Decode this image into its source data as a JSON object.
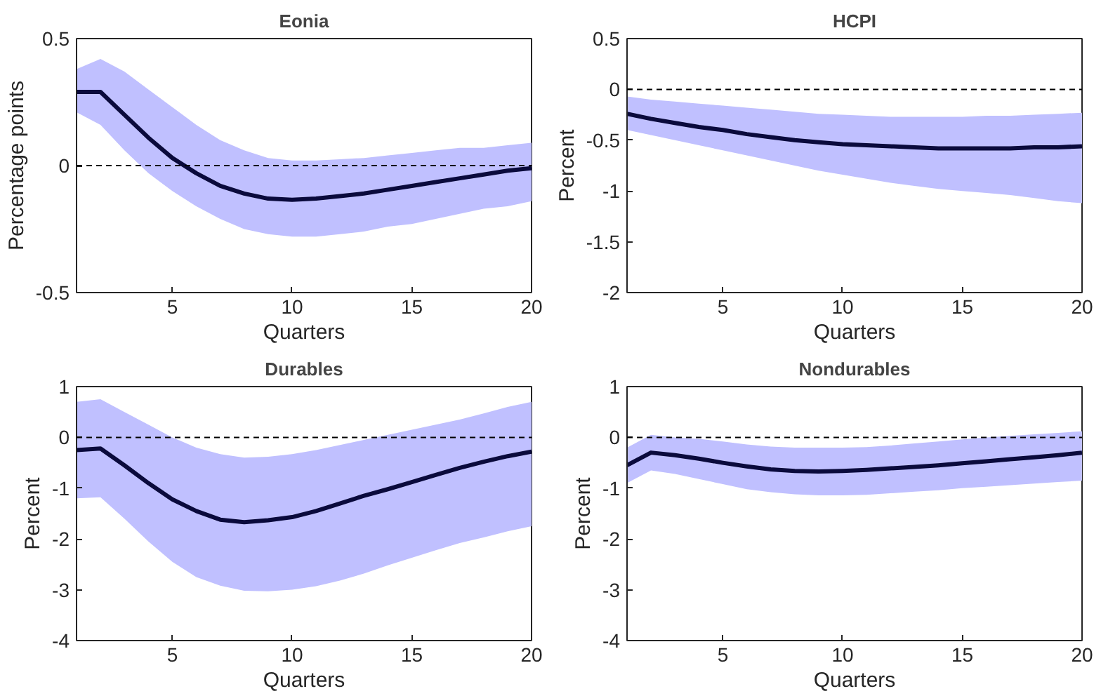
{
  "chart_data": [
    {
      "type": "line",
      "title": "Eonia",
      "xlabel": "Quarters",
      "ylabel": "Percentage points",
      "xlim": [
        1,
        20
      ],
      "xticks": [
        5,
        10,
        15,
        20
      ],
      "ylim": [
        -0.5,
        0.5
      ],
      "yticks": [
        -0.5,
        0,
        0.5
      ],
      "grid": false,
      "line_style": "solid",
      "ref_lines": [
        {
          "axis": "y",
          "value": 0,
          "color": "#000000",
          "line_style": "dashed"
        }
      ],
      "x": [
        1,
        2,
        3,
        4,
        5,
        6,
        7,
        8,
        9,
        10,
        11,
        12,
        13,
        14,
        15,
        16,
        17,
        18,
        19,
        20
      ],
      "series": [
        {
          "color": "#0a0a3c",
          "values": [
            0.29,
            0.29,
            0.2,
            0.11,
            0.03,
            -0.03,
            -0.08,
            -0.11,
            -0.13,
            -0.135,
            -0.13,
            -0.12,
            -0.11,
            -0.095,
            -0.08,
            -0.065,
            -0.05,
            -0.035,
            -0.02,
            -0.01
          ],
          "upper": [
            0.38,
            0.42,
            0.37,
            0.3,
            0.23,
            0.16,
            0.1,
            0.06,
            0.03,
            0.02,
            0.02,
            0.025,
            0.03,
            0.04,
            0.05,
            0.06,
            0.07,
            0.07,
            0.08,
            0.09
          ],
          "lower": [
            0.21,
            0.16,
            0.06,
            -0.03,
            -0.1,
            -0.16,
            -0.21,
            -0.25,
            -0.27,
            -0.28,
            -0.28,
            -0.27,
            -0.26,
            -0.24,
            -0.23,
            -0.21,
            -0.19,
            -0.17,
            -0.16,
            -0.14
          ]
        }
      ]
    },
    {
      "type": "line",
      "title": "HCPI",
      "xlabel": "Quarters",
      "ylabel": "Percent",
      "xlim": [
        1,
        20
      ],
      "xticks": [
        5,
        10,
        15,
        20
      ],
      "ylim": [
        -2,
        0.5
      ],
      "yticks": [
        -2,
        -1.5,
        -1,
        -0.5,
        0,
        0.5
      ],
      "grid": false,
      "line_style": "solid",
      "ref_lines": [
        {
          "axis": "y",
          "value": 0,
          "color": "#000000",
          "line_style": "dashed"
        }
      ],
      "x": [
        1,
        2,
        3,
        4,
        5,
        6,
        7,
        8,
        9,
        10,
        11,
        12,
        13,
        14,
        15,
        16,
        17,
        18,
        19,
        20
      ],
      "series": [
        {
          "color": "#0a0a3c",
          "values": [
            -0.24,
            -0.29,
            -0.33,
            -0.37,
            -0.4,
            -0.44,
            -0.47,
            -0.5,
            -0.52,
            -0.54,
            -0.55,
            -0.56,
            -0.57,
            -0.58,
            -0.58,
            -0.58,
            -0.58,
            -0.57,
            -0.57,
            -0.56
          ],
          "upper": [
            -0.07,
            -0.1,
            -0.12,
            -0.14,
            -0.16,
            -0.18,
            -0.2,
            -0.22,
            -0.24,
            -0.25,
            -0.26,
            -0.27,
            -0.27,
            -0.27,
            -0.27,
            -0.26,
            -0.26,
            -0.25,
            -0.24,
            -0.23
          ],
          "lower": [
            -0.4,
            -0.45,
            -0.5,
            -0.55,
            -0.6,
            -0.65,
            -0.7,
            -0.75,
            -0.8,
            -0.84,
            -0.88,
            -0.92,
            -0.95,
            -0.98,
            -1.0,
            -1.02,
            -1.04,
            -1.07,
            -1.1,
            -1.12
          ]
        }
      ]
    },
    {
      "type": "line",
      "title": "Durables",
      "xlabel": "Quarters",
      "ylabel": "Percent",
      "xlim": [
        1,
        20
      ],
      "xticks": [
        5,
        10,
        15,
        20
      ],
      "ylim": [
        -4,
        1
      ],
      "yticks": [
        -4,
        -3,
        -2,
        -1,
        0,
        1
      ],
      "grid": false,
      "line_style": "solid",
      "ref_lines": [
        {
          "axis": "y",
          "value": 0,
          "color": "#000000",
          "line_style": "dashed"
        }
      ],
      "x": [
        1,
        2,
        3,
        4,
        5,
        6,
        7,
        8,
        9,
        10,
        11,
        12,
        13,
        14,
        15,
        16,
        17,
        18,
        19,
        20
      ],
      "series": [
        {
          "color": "#0a0a3c",
          "values": [
            -0.25,
            -0.22,
            -0.55,
            -0.9,
            -1.22,
            -1.45,
            -1.62,
            -1.67,
            -1.63,
            -1.57,
            -1.45,
            -1.3,
            -1.15,
            -1.02,
            -0.88,
            -0.74,
            -0.6,
            -0.48,
            -0.37,
            -0.28
          ],
          "upper": [
            0.7,
            0.75,
            0.5,
            0.25,
            0.0,
            -0.2,
            -0.33,
            -0.4,
            -0.38,
            -0.33,
            -0.25,
            -0.15,
            -0.05,
            0.05,
            0.15,
            0.25,
            0.35,
            0.47,
            0.6,
            0.7
          ],
          "lower": [
            -1.2,
            -1.18,
            -1.6,
            -2.05,
            -2.45,
            -2.75,
            -2.92,
            -3.02,
            -3.03,
            -3.0,
            -2.93,
            -2.82,
            -2.68,
            -2.52,
            -2.37,
            -2.22,
            -2.08,
            -1.97,
            -1.85,
            -1.75
          ]
        }
      ]
    },
    {
      "type": "line",
      "title": "Nondurables",
      "xlabel": "Quarters",
      "ylabel": "Percent",
      "xlim": [
        1,
        20
      ],
      "xticks": [
        5,
        10,
        15,
        20
      ],
      "ylim": [
        -4,
        1
      ],
      "yticks": [
        -4,
        -3,
        -2,
        -1,
        0,
        1
      ],
      "grid": false,
      "line_style": "solid",
      "ref_lines": [
        {
          "axis": "y",
          "value": 0,
          "color": "#000000",
          "line_style": "dashed"
        }
      ],
      "x": [
        1,
        2,
        3,
        4,
        5,
        6,
        7,
        8,
        9,
        10,
        11,
        12,
        13,
        14,
        15,
        16,
        17,
        18,
        19,
        20
      ],
      "series": [
        {
          "color": "#0a0a3c",
          "values": [
            -0.55,
            -0.3,
            -0.35,
            -0.42,
            -0.5,
            -0.57,
            -0.63,
            -0.66,
            -0.67,
            -0.66,
            -0.64,
            -0.61,
            -0.58,
            -0.55,
            -0.51,
            -0.47,
            -0.43,
            -0.39,
            -0.35,
            -0.3
          ],
          "upper": [
            -0.2,
            0.05,
            0.0,
            -0.03,
            -0.08,
            -0.14,
            -0.18,
            -0.2,
            -0.2,
            -0.2,
            -0.19,
            -0.16,
            -0.12,
            -0.08,
            -0.04,
            0.0,
            0.03,
            0.06,
            0.09,
            0.12
          ],
          "lower": [
            -0.9,
            -0.65,
            -0.72,
            -0.82,
            -0.92,
            -1.02,
            -1.08,
            -1.12,
            -1.14,
            -1.14,
            -1.13,
            -1.1,
            -1.07,
            -1.04,
            -1.0,
            -0.97,
            -0.94,
            -0.91,
            -0.88,
            -0.85
          ]
        }
      ]
    }
  ]
}
